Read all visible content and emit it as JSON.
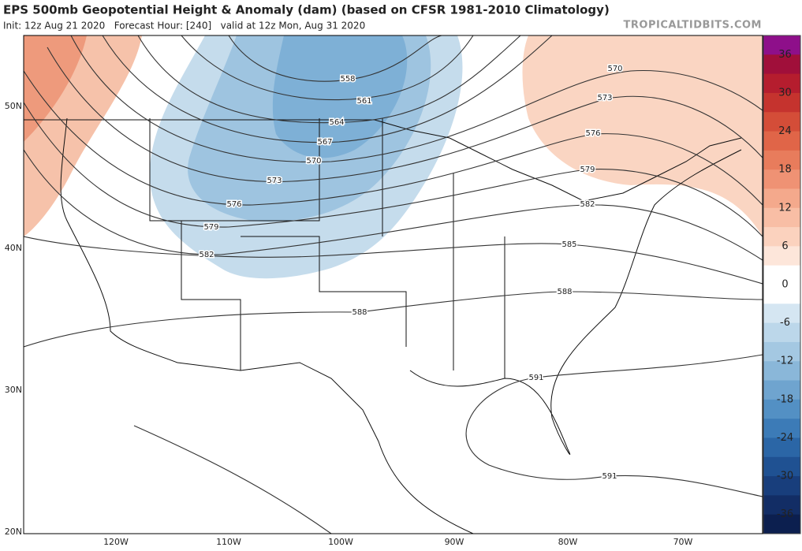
{
  "header": {
    "title": "EPS 500mb Geopotential Height & Anomaly (dam) (based on CFSR 1981-2010 Climatology)",
    "subtitle": "Init: 12z Aug 21 2020   Forecast Hour: [240]   valid at 12z Mon, Aug 31 2020",
    "watermark": "TROPICALTIDBITS.COM"
  },
  "map": {
    "lat_labels": [
      "50N",
      "40N",
      "30N",
      "20N"
    ],
    "lon_labels": [
      "120W",
      "110W",
      "100W",
      "90W",
      "80W",
      "70W"
    ],
    "contour_labels": [
      558,
      561,
      564,
      567,
      570,
      573,
      576,
      579,
      582,
      585,
      588,
      591,
      591,
      582,
      579,
      576,
      573,
      570,
      588
    ]
  },
  "colorbar": {
    "range": [
      -39,
      39
    ],
    "ticks": [
      36,
      30,
      24,
      18,
      12,
      6,
      0,
      -6,
      -12,
      -18,
      -24,
      -30,
      -36
    ],
    "colors": [
      "#8e0f8a",
      "#a00f3a",
      "#b51d2e",
      "#c5332e",
      "#d44d38",
      "#e06548",
      "#e87c5c",
      "#ef9274",
      "#f4a98c",
      "#f8bea5",
      "#fbd2be",
      "#fde6da",
      "#ffffff",
      "#ffffff",
      "#d5e6f2",
      "#bcd7ea",
      "#a4c8e2",
      "#8ab7d9",
      "#6fa4cf",
      "#5390c4",
      "#3c7bb7",
      "#2b66a6",
      "#1f5192",
      "#183e7c",
      "#122d65",
      "#0c1f4f"
    ]
  }
}
